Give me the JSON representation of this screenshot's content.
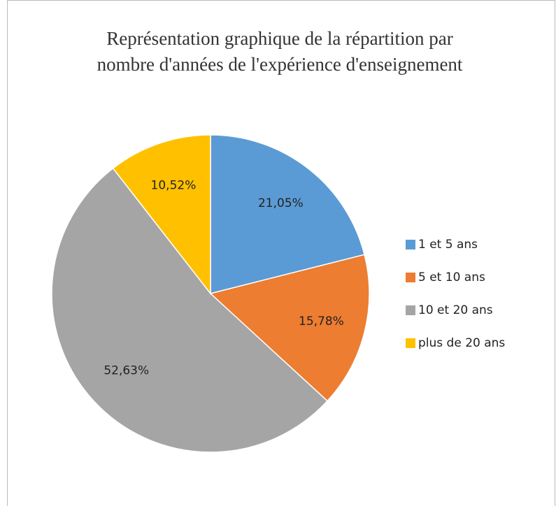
{
  "chart_data": {
    "type": "pie",
    "title": [
      "Représentation graphique de la répartition par",
      "nombre d'années de l'expérience d'enseignement"
    ],
    "categories": [
      "1 et 5 ans",
      "5 et 10 ans",
      "10 et 20 ans",
      "plus de 20 ans"
    ],
    "values": [
      21.05,
      15.78,
      52.63,
      10.52
    ],
    "value_labels": [
      "21,05%",
      "15,78%",
      "52,63%",
      "10,52%"
    ],
    "colors": [
      "#5b9bd5",
      "#ed7d31",
      "#a5a5a5",
      "#ffc000"
    ],
    "legend": "right"
  }
}
